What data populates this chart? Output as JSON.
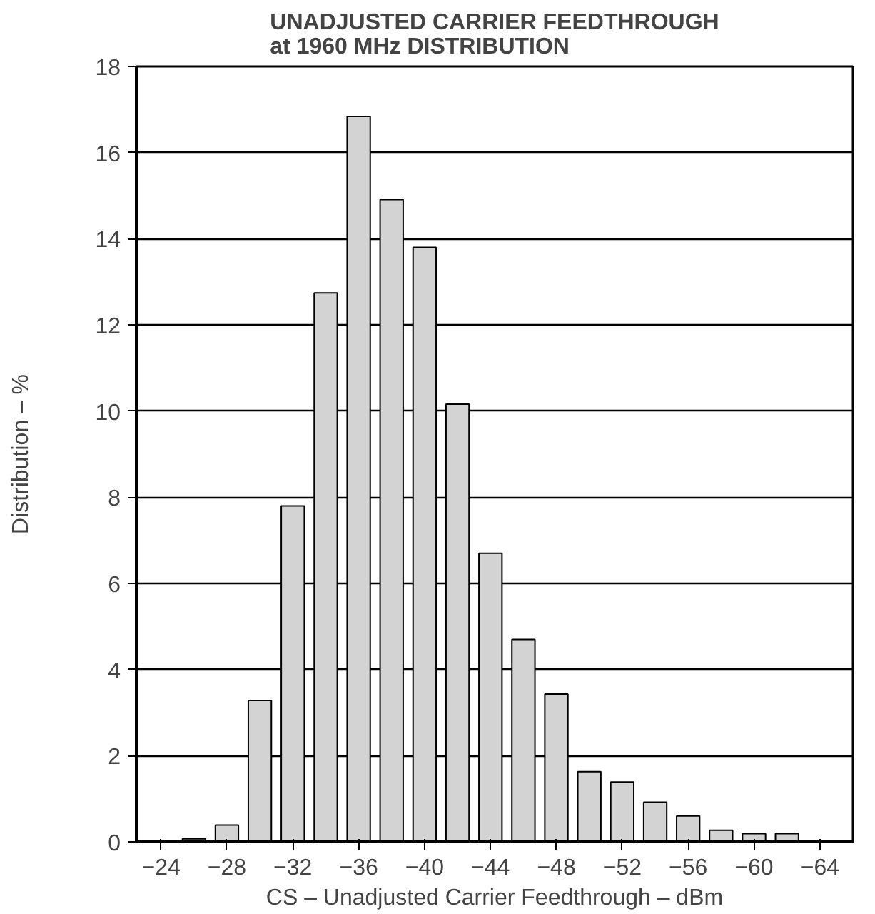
{
  "chart_data": {
    "type": "bar",
    "title": "UNADJUSTED CARRIER FEEDTHROUGH\nat 1960 MHz DISTRIBUTION",
    "xlabel": "CS – Unadjusted Carrier Feedthrough – dBm",
    "ylabel": "Distribution – %",
    "x": [
      -26,
      -28,
      -30,
      -32,
      -34,
      -36,
      -38,
      -40,
      -42,
      -44,
      -46,
      -48,
      -50,
      -52,
      -54,
      -56,
      -58,
      -60,
      -62
    ],
    "values": [
      0.07,
      0.39,
      3.28,
      7.8,
      12.74,
      16.84,
      14.91,
      13.8,
      10.16,
      6.7,
      4.7,
      3.43,
      1.63,
      1.39,
      0.92,
      0.6,
      0.27,
      0.19,
      0.19
    ],
    "color": "#d3d3d3",
    "xlim": [
      -22.5,
      -66
    ],
    "ylim": [
      0,
      18
    ],
    "xticks": [
      {
        "value": -24,
        "label": "−24"
      },
      {
        "value": -28,
        "label": "−28"
      },
      {
        "value": -32,
        "label": "−32"
      },
      {
        "value": -36,
        "label": "−36"
      },
      {
        "value": -40,
        "label": "−40"
      },
      {
        "value": -44,
        "label": "−44"
      },
      {
        "value": -48,
        "label": "−48"
      },
      {
        "value": -52,
        "label": "−52"
      },
      {
        "value": -56,
        "label": "−56"
      },
      {
        "value": -60,
        "label": "−60"
      },
      {
        "value": -64,
        "label": "−64"
      }
    ],
    "yticks": [
      0,
      2,
      4,
      6,
      8,
      10,
      12,
      14,
      16,
      18
    ],
    "grid": "y"
  }
}
